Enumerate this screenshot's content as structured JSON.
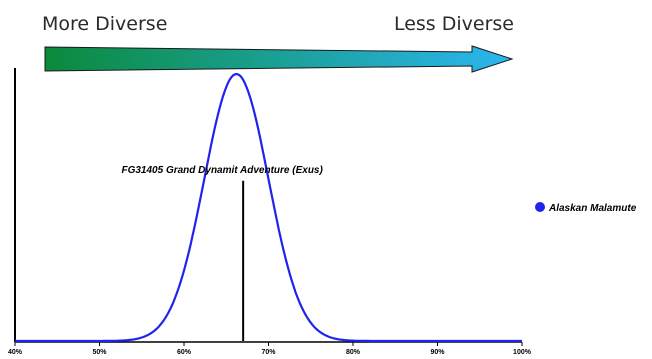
{
  "header": {
    "left_label": "More Diverse",
    "right_label": "Less Diverse",
    "gradient_start": "#0b8a3c",
    "gradient_end": "#2bb6f0"
  },
  "chart_data": {
    "type": "line",
    "title": "",
    "xlabel": "",
    "ylabel": "",
    "xlim": [
      40,
      100
    ],
    "x_ticks": [
      "40%",
      "50%",
      "60%",
      "70%",
      "80%",
      "90%",
      "100%"
    ],
    "grid": false,
    "legend_placement": "right",
    "series": [
      {
        "name": "Alaskan Malamute",
        "color": "#2222ee",
        "distribution": "normal",
        "mean": 66.2,
        "sd": 3.8,
        "peak_relative_height": 1.0
      }
    ],
    "marker": {
      "label": "FG31405 Grand Dynamit Adventure (Exus)",
      "x": 67.0,
      "relative_height": 0.6,
      "color": "#000000"
    }
  }
}
